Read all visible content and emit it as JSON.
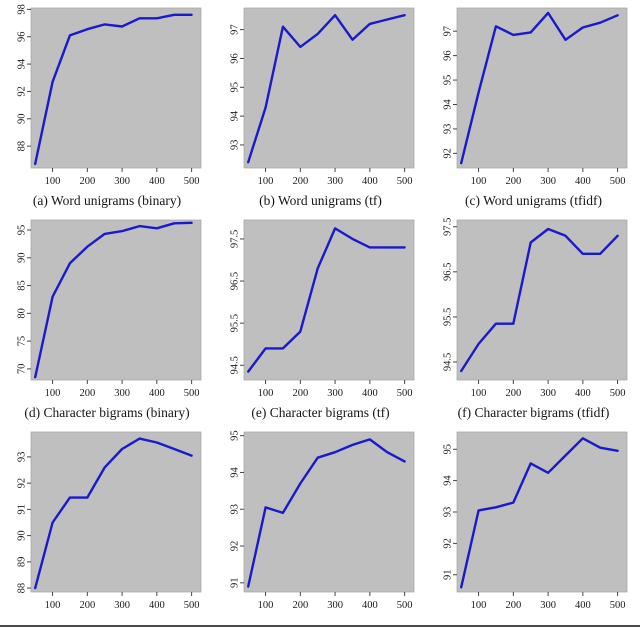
{
  "style": {
    "plot_bg": "#bfbfbf",
    "plot_border": "#a3a3a3",
    "line_color": "#1a1acd",
    "tick_color": "#444444",
    "text_color": "#1a1a1a"
  },
  "chart_data": [
    {
      "type": "line",
      "title": "(a) Word unigrams (binary)",
      "xlabel": "",
      "ylabel": "",
      "x": [
        50,
        100,
        150,
        200,
        250,
        300,
        350,
        400,
        450,
        500
      ],
      "y": [
        86.7,
        92.7,
        96.1,
        96.55,
        96.9,
        96.75,
        97.35,
        97.35,
        97.6,
        97.6
      ],
      "xticks": [
        100,
        200,
        300,
        400,
        500
      ],
      "yticks": [
        88,
        90,
        92,
        94,
        96,
        98
      ],
      "xlim": [
        38,
        527
      ],
      "ylim": [
        86.4,
        98.1
      ],
      "grid": false,
      "legend": null
    },
    {
      "type": "line",
      "title": "(b) Word unigrams (tf)",
      "xlabel": "",
      "ylabel": "",
      "x": [
        50,
        100,
        150,
        200,
        250,
        300,
        350,
        400,
        450,
        500
      ],
      "y": [
        92.4,
        94.3,
        97.1,
        96.4,
        96.85,
        97.5,
        96.65,
        97.2,
        97.35,
        97.5
      ],
      "xticks": [
        100,
        200,
        300,
        400,
        500
      ],
      "yticks": [
        93,
        94,
        95,
        96,
        97
      ],
      "xlim": [
        38,
        527
      ],
      "ylim": [
        92.2,
        97.75
      ],
      "grid": false,
      "legend": null
    },
    {
      "type": "line",
      "title": "(c) Word unigrams (tfidf)",
      "xlabel": "",
      "ylabel": "",
      "x": [
        50,
        100,
        150,
        200,
        250,
        300,
        350,
        400,
        450,
        500
      ],
      "y": [
        91.6,
        94.5,
        97.2,
        96.85,
        96.95,
        97.75,
        96.65,
        97.15,
        97.35,
        97.65
      ],
      "xticks": [
        100,
        200,
        300,
        400,
        500
      ],
      "yticks": [
        92,
        93,
        94,
        95,
        96,
        97
      ],
      "xlim": [
        38,
        527
      ],
      "ylim": [
        91.4,
        97.95
      ],
      "grid": false,
      "legend": null
    },
    {
      "type": "line",
      "title": "(d) Character bigrams (binary)",
      "xlabel": "",
      "ylabel": "",
      "x": [
        50,
        100,
        150,
        200,
        250,
        300,
        350,
        400,
        450,
        500
      ],
      "y": [
        68.5,
        83.0,
        89.0,
        92.0,
        94.3,
        94.8,
        95.7,
        95.3,
        96.2,
        96.3
      ],
      "xticks": [
        100,
        200,
        300,
        400,
        500
      ],
      "yticks": [
        70,
        75,
        80,
        85,
        90,
        95
      ],
      "xlim": [
        38,
        527
      ],
      "ylim": [
        68.0,
        96.8
      ],
      "grid": false,
      "legend": null
    },
    {
      "type": "line",
      "title": "(e) Character bigrams (tf)",
      "xlabel": "",
      "ylabel": "",
      "x": [
        50,
        100,
        150,
        200,
        250,
        300,
        350,
        400,
        450,
        500
      ],
      "y": [
        94.35,
        94.9,
        94.9,
        95.3,
        96.8,
        97.75,
        97.5,
        97.3,
        97.3,
        97.3
      ],
      "xticks": [
        100,
        200,
        300,
        400,
        500
      ],
      "yticks": [
        94.5,
        95.5,
        96.5,
        97.5
      ],
      "xlim": [
        38,
        527
      ],
      "ylim": [
        94.15,
        97.95
      ],
      "grid": false,
      "legend": null
    },
    {
      "type": "line",
      "title": "(f) Character bigrams (tfidf)",
      "xlabel": "",
      "ylabel": "",
      "x": [
        50,
        100,
        150,
        200,
        250,
        300,
        350,
        400,
        450,
        500
      ],
      "y": [
        94.3,
        94.9,
        95.35,
        95.35,
        97.15,
        97.45,
        97.3,
        96.9,
        96.9,
        97.3
      ],
      "xticks": [
        100,
        200,
        300,
        400,
        500
      ],
      "yticks": [
        94.5,
        95.5,
        96.5,
        97.5
      ],
      "xlim": [
        38,
        527
      ],
      "ylim": [
        94.1,
        97.65
      ],
      "grid": false,
      "legend": null
    },
    {
      "type": "line",
      "title": "",
      "xlabel": "",
      "ylabel": "",
      "x": [
        50,
        100,
        150,
        200,
        250,
        300,
        350,
        400,
        450,
        500
      ],
      "y": [
        88.0,
        90.5,
        91.45,
        91.45,
        92.6,
        93.3,
        93.7,
        93.55,
        93.3,
        93.05
      ],
      "xticks": [
        100,
        200,
        300,
        400,
        500
      ],
      "yticks": [
        88,
        89,
        90,
        91,
        92,
        93
      ],
      "xlim": [
        38,
        527
      ],
      "ylim": [
        87.85,
        93.95
      ],
      "grid": false,
      "legend": null
    },
    {
      "type": "line",
      "title": "",
      "xlabel": "",
      "ylabel": "",
      "x": [
        50,
        100,
        150,
        200,
        250,
        300,
        350,
        400,
        450,
        500
      ],
      "y": [
        90.9,
        93.05,
        92.9,
        93.7,
        94.4,
        94.55,
        94.75,
        94.9,
        94.55,
        94.3
      ],
      "xticks": [
        100,
        200,
        300,
        400,
        500
      ],
      "yticks": [
        91,
        92,
        93,
        94,
        95
      ],
      "xlim": [
        38,
        527
      ],
      "ylim": [
        90.75,
        95.1
      ],
      "grid": false,
      "legend": null
    },
    {
      "type": "line",
      "title": "",
      "xlabel": "",
      "ylabel": "",
      "x": [
        50,
        100,
        150,
        200,
        250,
        300,
        350,
        400,
        450,
        500
      ],
      "y": [
        90.6,
        93.05,
        93.15,
        93.3,
        94.55,
        94.25,
        94.8,
        95.35,
        95.05,
        94.95
      ],
      "xticks": [
        100,
        200,
        300,
        400,
        500
      ],
      "yticks": [
        91,
        92,
        93,
        94,
        95
      ],
      "xlim": [
        38,
        527
      ],
      "ylim": [
        90.45,
        95.55
      ],
      "grid": false,
      "legend": null
    }
  ]
}
